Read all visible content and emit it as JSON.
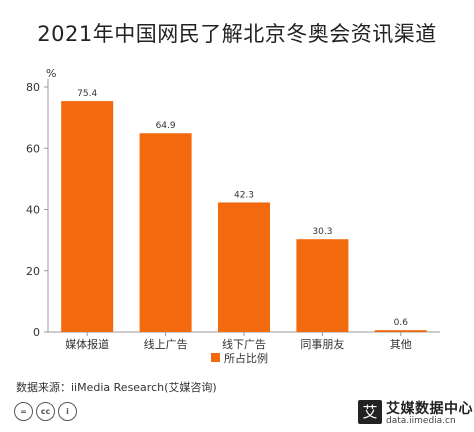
{
  "title": "2021年中国网民了解北京冬奥会资讯渠道",
  "source": "数据来源：iiMedia Research(艾媒咨询)",
  "cc_icons": [
    "=",
    "cc",
    "i"
  ],
  "logo": {
    "mark": "艾",
    "name": "艾媒数据中心",
    "url": "data.iimedia.cn"
  },
  "colors": {
    "bar": "#F26A0D",
    "axis": "#999999",
    "text": "#333333"
  },
  "chart_data": {
    "type": "bar",
    "title": "2021年中国网民了解北京冬奥会资讯渠道",
    "ylabel": "%",
    "xlabel": "",
    "ylim": [
      0,
      80
    ],
    "yticks": [
      0,
      20,
      40,
      60,
      80
    ],
    "grid": false,
    "legend_position": "bottom",
    "categories": [
      "媒体报道",
      "线上广告",
      "线下广告",
      "同事朋友",
      "其他"
    ],
    "series": [
      {
        "name": "所占比例",
        "values": [
          75.4,
          64.9,
          42.3,
          30.3,
          0.6
        ],
        "color": "#F26A0D"
      }
    ]
  }
}
